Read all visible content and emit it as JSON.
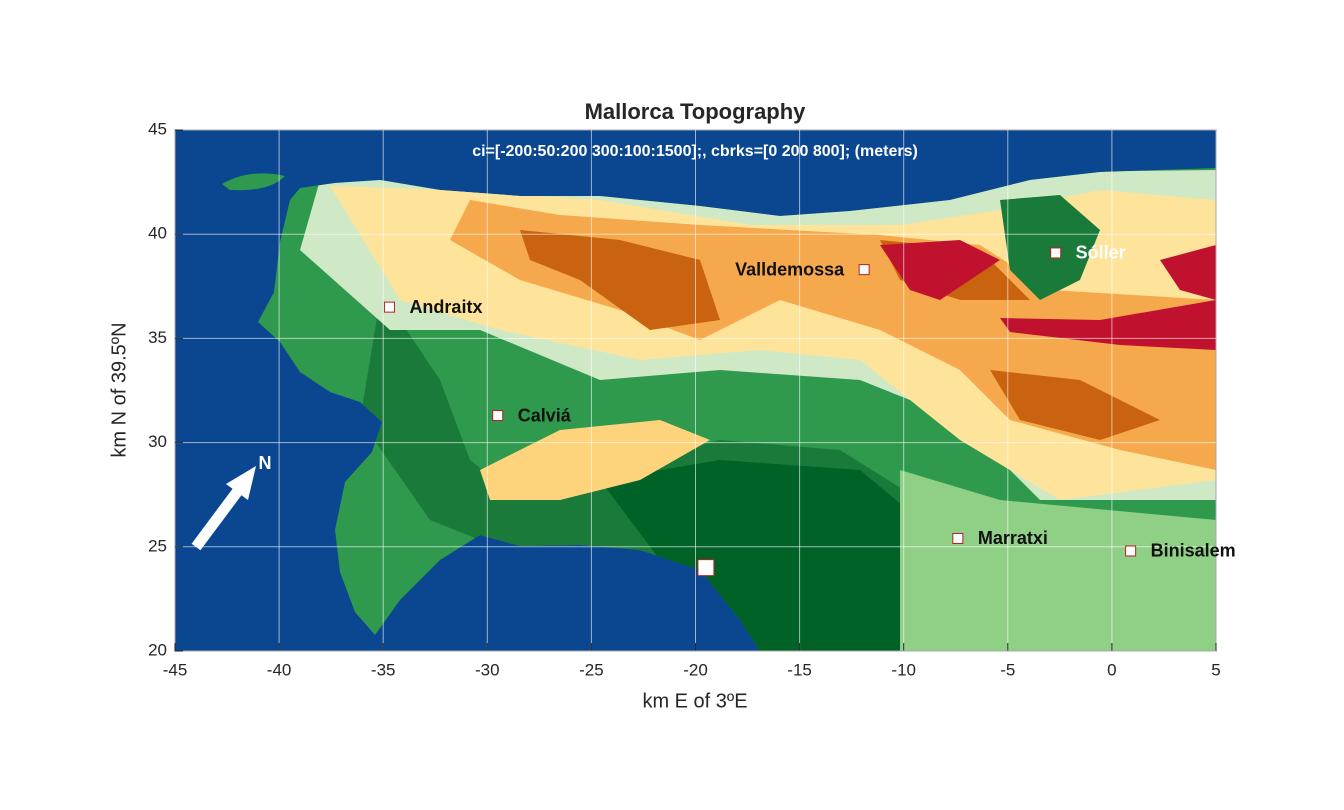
{
  "map": {
    "title": "Mallorca Topography",
    "subtitle": "ci=[-200:50:200 300:100:1500];, cbrks=[0 200 800]; (meters)",
    "xlabel": "km E of 3ºE",
    "ylabel": "km N of 39.5ºN",
    "xlim": [
      -45,
      5
    ],
    "ylim": [
      20,
      45
    ],
    "xticks": [
      -45,
      -40,
      -35,
      -30,
      -25,
      -20,
      -15,
      -10,
      -5,
      0,
      5
    ],
    "yticks": [
      20,
      25,
      30,
      35,
      40,
      45
    ],
    "grid": true,
    "north_label": "N",
    "places": [
      {
        "name": "Andraitx",
        "x": -34.7,
        "y": 36.5,
        "color": "#111111"
      },
      {
        "name": "Calviá",
        "x": -29.5,
        "y": 31.3,
        "color": "#111111"
      },
      {
        "name": "Valldemossa",
        "x": -11.9,
        "y": 38.3,
        "color": "#111111"
      },
      {
        "name": "Sóller",
        "x": -2.7,
        "y": 39.1,
        "color": "#ffffff"
      },
      {
        "name": "Marratxi",
        "x": -7.4,
        "y": 25.4,
        "color": "#111111"
      },
      {
        "name": "Binisalem",
        "x": 0.9,
        "y": 24.8,
        "color": "#111111"
      }
    ],
    "marker": {
      "x": -19.5,
      "y": 24.0
    }
  }
}
